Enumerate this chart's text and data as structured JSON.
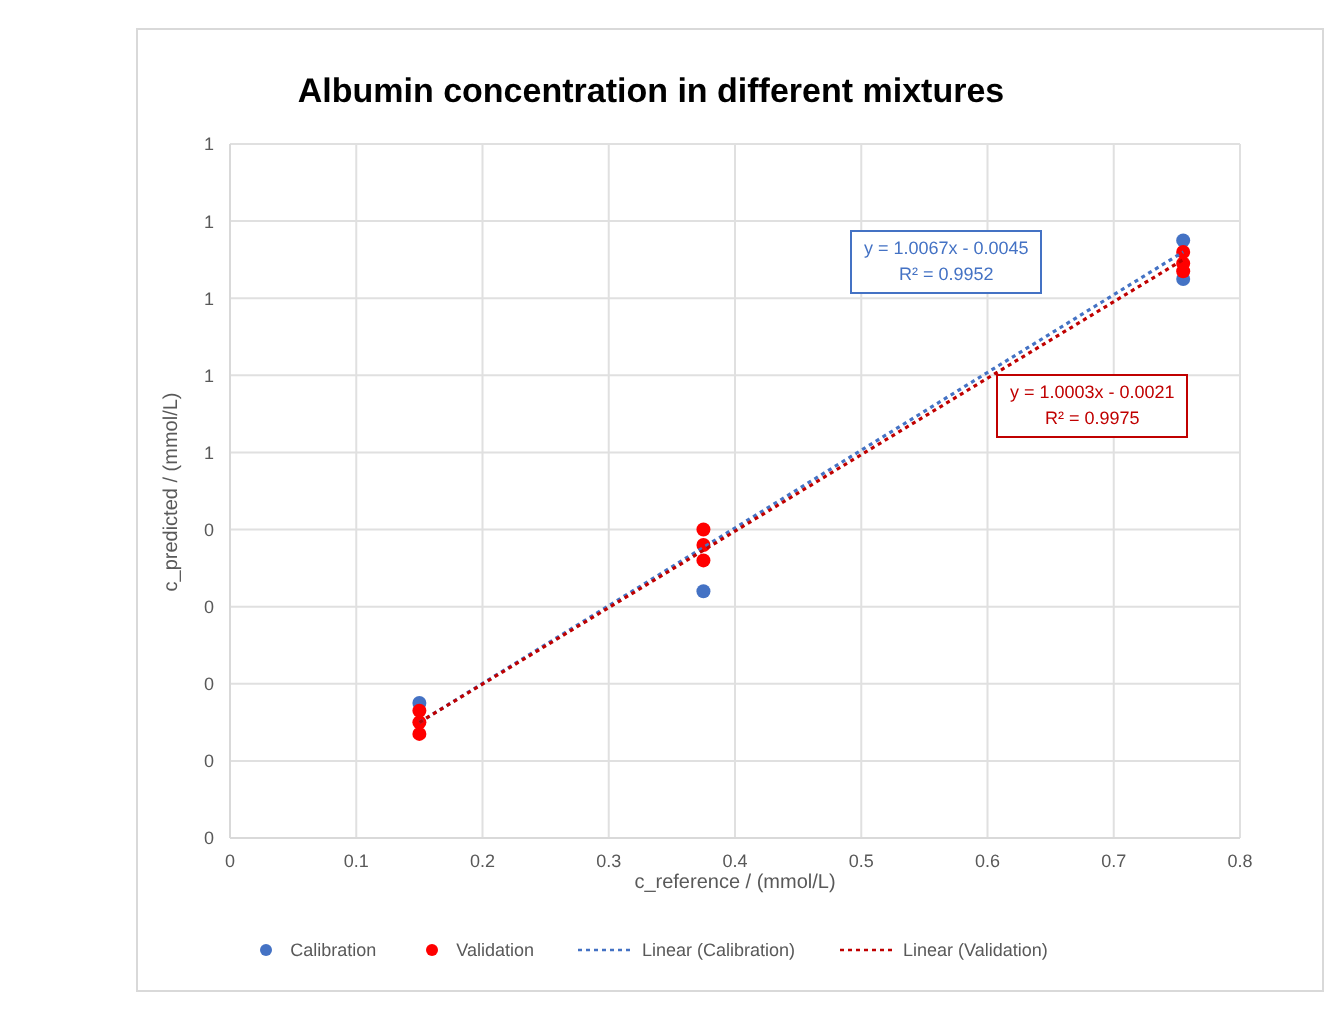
{
  "chart_data": {
    "type": "scatter",
    "title": "Albumin concentration in different mixtures",
    "xlabel": "c_reference / (mmol/L)",
    "ylabel": "c_predicted / (mmol/L)",
    "xlim": [
      0,
      0.8
    ],
    "xticks": [
      0,
      0.1,
      0.2,
      0.3,
      0.4,
      0.5,
      0.6,
      0.7,
      0.8
    ],
    "ylim": [
      0,
      0.9
    ],
    "yticks": [
      {
        "value": 0,
        "label": "0"
      },
      {
        "value": 0.1,
        "label": "0"
      },
      {
        "value": 0.2,
        "label": "0"
      },
      {
        "value": 0.3,
        "label": "0"
      },
      {
        "value": 0.4,
        "label": "0"
      },
      {
        "value": 0.5,
        "label": "1"
      },
      {
        "value": 0.6,
        "label": "1"
      },
      {
        "value": 0.7,
        "label": "1"
      },
      {
        "value": 0.8,
        "label": "1"
      },
      {
        "value": 0.9,
        "label": "1"
      }
    ],
    "grid": true,
    "legend": "bottom",
    "marker": "circle",
    "series": [
      {
        "name": "Calibration",
        "color": "#4472c4",
        "x": [
          0.15,
          0.375,
          0.755,
          0.755
        ],
        "values": [
          0.175,
          0.32,
          0.775,
          0.725
        ]
      },
      {
        "name": "Validation",
        "color": "#ff0000",
        "x": [
          0.15,
          0.15,
          0.15,
          0.375,
          0.375,
          0.375,
          0.755,
          0.755,
          0.755
        ],
        "values": [
          0.165,
          0.15,
          0.135,
          0.4,
          0.38,
          0.36,
          0.76,
          0.745,
          0.735
        ]
      },
      {
        "name": "Linear (Calibration)",
        "type": "line",
        "line_style": "dotted",
        "marker": "none",
        "color": "#4472c4",
        "x": [
          0.15,
          0.755
        ],
        "values": [
          0.15,
          0.76
        ]
      },
      {
        "name": "Linear (Validation)",
        "type": "line",
        "line_style": "dotted",
        "marker": "none",
        "color": "#c00000",
        "x": [
          0.15,
          0.755
        ],
        "values": [
          0.15,
          0.75
        ]
      }
    ],
    "annotations": [
      "y = 1.0067x - 0.0045\nR² = 0.9952",
      "y = 1.0003x - 0.0021\nR² = 0.9975"
    ]
  }
}
